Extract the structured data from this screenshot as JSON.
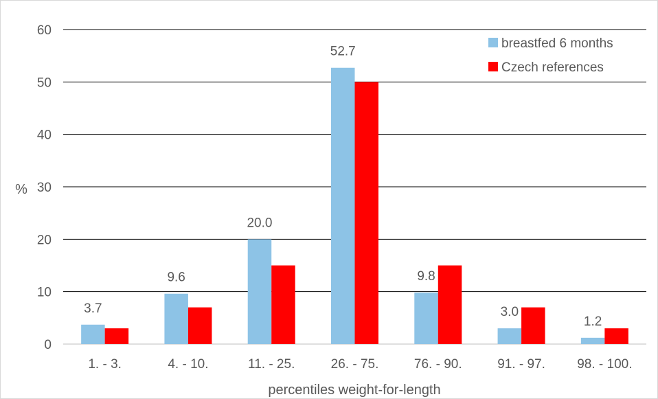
{
  "chart_data": {
    "type": "bar",
    "categories": [
      "1. - 3.",
      "4. - 10.",
      "11. - 25.",
      "26. - 75.",
      "76. - 90.",
      "91. - 97.",
      "98. - 100."
    ],
    "series": [
      {
        "name": "breastfed 6 months",
        "color": "#8DC3E6",
        "values": [
          3.7,
          9.6,
          20.0,
          52.7,
          9.8,
          3.0,
          1.2
        ],
        "data_labels": [
          "3.7",
          "9.6",
          "20.0",
          "52.7",
          "9.8",
          "3.0",
          "1.2"
        ]
      },
      {
        "name": "Czech references",
        "color": "#FF0000",
        "values": [
          3,
          7,
          15,
          50,
          15,
          7,
          3
        ]
      }
    ],
    "xlabel": "percentiles weight-for-length",
    "ylabel": "%",
    "ylim": [
      0,
      60
    ],
    "yticks": [
      0,
      10,
      20,
      30,
      40,
      50,
      60
    ],
    "grid": true,
    "legend_position": "top-right"
  }
}
